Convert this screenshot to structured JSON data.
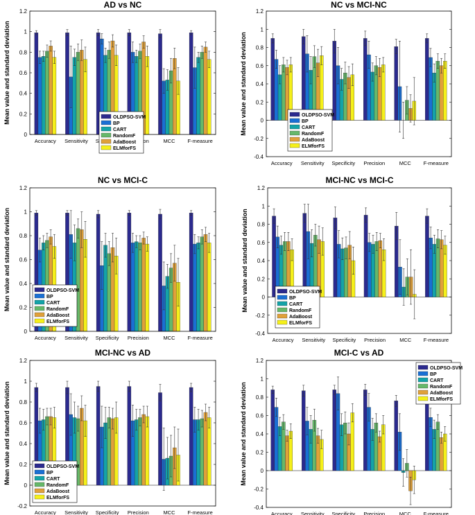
{
  "legend_labels": [
    "OLDPSO-SVM",
    "BP",
    "CART",
    "RandomF",
    "AdaBoost",
    "ELMforFS"
  ],
  "series_colors": [
    "#2b2a8e",
    "#1a6fd4",
    "#14a3a8",
    "#66b86a",
    "#e0a13a",
    "#f5f01a"
  ],
  "chart_data": [
    {
      "type": "bar",
      "title": "AD vs NC",
      "ylabel": "Mean value and standard deviation",
      "xlabel": "",
      "ylim": [
        0,
        1.2
      ],
      "yticks": [
        "0",
        "0.2",
        "0.4",
        "0.6",
        "0.8",
        "1",
        "1.2"
      ],
      "ytick_values": [
        0,
        0.2,
        0.4,
        0.6,
        0.8,
        1,
        1.2
      ],
      "categories": [
        "Accuracy",
        "Sensitivity",
        "Specificity",
        "Precision",
        "MCC",
        "F-measure"
      ],
      "legend_position": "bottom-center",
      "grid": false,
      "series": [
        {
          "name": "OLDPSO-SVM",
          "values": [
            0.99,
            0.99,
            0.99,
            0.99,
            0.98,
            0.99
          ],
          "errors": [
            0.02,
            0.03,
            0.03,
            0.03,
            0.04,
            0.02
          ]
        },
        {
          "name": "BP",
          "values": [
            0.75,
            0.56,
            0.93,
            0.8,
            0.52,
            0.65
          ],
          "errors": [
            0.06,
            0.3,
            0.05,
            0.1,
            0.12,
            0.2
          ]
        },
        {
          "name": "CART",
          "values": [
            0.76,
            0.75,
            0.77,
            0.76,
            0.53,
            0.75
          ],
          "errors": [
            0.05,
            0.08,
            0.07,
            0.06,
            0.1,
            0.05
          ]
        },
        {
          "name": "RandomF",
          "values": [
            0.81,
            0.8,
            0.82,
            0.81,
            0.62,
            0.8
          ],
          "errors": [
            0.06,
            0.08,
            0.08,
            0.07,
            0.12,
            0.06
          ]
        },
        {
          "name": "AdaBoost",
          "values": [
            0.86,
            0.82,
            0.91,
            0.9,
            0.74,
            0.85
          ],
          "errors": [
            0.05,
            0.1,
            0.06,
            0.06,
            0.1,
            0.05
          ]
        },
        {
          "name": "ELMforFS",
          "values": [
            0.75,
            0.73,
            0.77,
            0.76,
            0.52,
            0.73
          ],
          "errors": [
            0.06,
            0.12,
            0.1,
            0.1,
            0.13,
            0.08
          ]
        }
      ]
    },
    {
      "type": "bar",
      "title": "NC vs MCI-NC",
      "ylabel": "Mean value and standard deviation",
      "xlabel": "",
      "ylim": [
        -0.4,
        1.2
      ],
      "yticks": [
        "-0.4",
        "-0.2",
        "0",
        "0.2",
        "0.4",
        "0.6",
        "0.8",
        "1",
        "1.2"
      ],
      "ytick_values": [
        -0.4,
        -0.2,
        0,
        0.2,
        0.4,
        0.6,
        0.8,
        1,
        1.2
      ],
      "categories": [
        "Accuracy",
        "Sensitivity",
        "Specificity",
        "Precision",
        "MCC",
        "F-measure"
      ],
      "legend_position": "bottom-center",
      "grid": false,
      "series": [
        {
          "name": "OLDPSO-SVM",
          "values": [
            0.9,
            0.92,
            0.87,
            0.9,
            0.81,
            0.9
          ],
          "errors": [
            0.05,
            0.08,
            0.13,
            0.08,
            0.08,
            0.05
          ]
        },
        {
          "name": "BP",
          "values": [
            0.67,
            0.73,
            0.6,
            0.72,
            0.37,
            0.69
          ],
          "errors": [
            0.1,
            0.2,
            0.2,
            0.15,
            0.5,
            0.1
          ]
        },
        {
          "name": "CART",
          "values": [
            0.5,
            0.55,
            0.45,
            0.53,
            0.0,
            0.52
          ],
          "errors": [
            0.1,
            0.15,
            0.12,
            0.1,
            0.2,
            0.1
          ]
        },
        {
          "name": "RandomF",
          "values": [
            0.61,
            0.7,
            0.52,
            0.6,
            0.22,
            0.65
          ],
          "errors": [
            0.08,
            0.12,
            0.12,
            0.1,
            0.15,
            0.08
          ]
        },
        {
          "name": "AdaBoost",
          "values": [
            0.58,
            0.63,
            0.47,
            0.58,
            0.13,
            0.6
          ],
          "errors": [
            0.08,
            0.15,
            0.12,
            0.1,
            0.15,
            0.08
          ]
        },
        {
          "name": "ELMforFS",
          "values": [
            0.61,
            0.71,
            0.5,
            0.61,
            0.21,
            0.65
          ],
          "errors": [
            0.08,
            0.1,
            0.12,
            0.08,
            0.26,
            0.08
          ]
        }
      ]
    },
    {
      "type": "bar",
      "title": "NC vs MCI-C",
      "ylabel": "Mean value and standard deviation",
      "xlabel": "",
      "ylim": [
        0,
        1.2
      ],
      "yticks": [
        "0",
        "0.2",
        "0.4",
        "0.6",
        "0.8",
        "1",
        "1.2"
      ],
      "ytick_values": [
        0,
        0.2,
        0.4,
        0.6,
        0.8,
        1,
        1.2
      ],
      "categories": [
        "Accuracy",
        "Sensitivity",
        "Specificity",
        "Precision",
        "MCC",
        "F-measure"
      ],
      "legend_position": "bottom-left",
      "grid": false,
      "series": [
        {
          "name": "OLDPSO-SVM",
          "values": [
            0.99,
            0.99,
            0.98,
            0.99,
            0.98,
            0.99
          ],
          "errors": [
            0.02,
            0.02,
            0.03,
            0.02,
            0.04,
            0.02
          ]
        },
        {
          "name": "BP",
          "values": [
            0.68,
            0.81,
            0.55,
            0.74,
            0.38,
            0.73
          ],
          "errors": [
            0.1,
            0.2,
            0.2,
            0.08,
            0.2,
            0.08
          ]
        },
        {
          "name": "CART",
          "values": [
            0.74,
            0.74,
            0.72,
            0.75,
            0.46,
            0.74
          ],
          "errors": [
            0.06,
            0.15,
            0.1,
            0.05,
            0.1,
            0.05
          ]
        },
        {
          "name": "RandomF",
          "values": [
            0.76,
            0.86,
            0.65,
            0.74,
            0.53,
            0.79
          ],
          "errors": [
            0.06,
            0.08,
            0.1,
            0.06,
            0.12,
            0.06
          ]
        },
        {
          "name": "AdaBoost",
          "values": [
            0.79,
            0.85,
            0.7,
            0.78,
            0.57,
            0.81
          ],
          "errors": [
            0.06,
            0.15,
            0.12,
            0.05,
            0.15,
            0.06
          ]
        },
        {
          "name": "ELMforFS",
          "values": [
            0.71,
            0.77,
            0.63,
            0.73,
            0.41,
            0.74
          ],
          "errors": [
            0.1,
            0.15,
            0.15,
            0.06,
            0.2,
            0.08
          ]
        }
      ]
    },
    {
      "type": "bar",
      "title": "MCI-NC vs MCI-C",
      "ylabel": "Mean value and standard deviation",
      "xlabel": "",
      "ylim": [
        -0.4,
        1.2
      ],
      "yticks": [
        "-0.4",
        "-0.2",
        "0",
        "0.2",
        "0.4",
        "0.6",
        "0.8",
        "1",
        "1.2"
      ],
      "ytick_values": [
        -0.4,
        -0.2,
        0,
        0.2,
        0.4,
        0.6,
        0.8,
        1,
        1.2
      ],
      "categories": [
        "Accuracy",
        "Sensitivity",
        "Specificity",
        "Precision",
        "MCC",
        "F-measure"
      ],
      "legend_position": "bottom-center",
      "grid": false,
      "series": [
        {
          "name": "OLDPSO-SVM",
          "values": [
            0.89,
            0.92,
            0.87,
            0.9,
            0.78,
            0.89
          ],
          "errors": [
            0.08,
            0.1,
            0.12,
            0.08,
            0.15,
            0.08
          ]
        },
        {
          "name": "BP",
          "values": [
            0.66,
            0.72,
            0.58,
            0.6,
            0.33,
            0.65
          ],
          "errors": [
            0.12,
            0.3,
            0.15,
            0.1,
            0.3,
            0.12
          ]
        },
        {
          "name": "CART",
          "values": [
            0.57,
            0.59,
            0.53,
            0.58,
            0.11,
            0.58
          ],
          "errors": [
            0.1,
            0.15,
            0.12,
            0.1,
            0.2,
            0.1
          ]
        },
        {
          "name": "RandomF",
          "values": [
            0.61,
            0.68,
            0.54,
            0.61,
            0.22,
            0.64
          ],
          "errors": [
            0.1,
            0.12,
            0.12,
            0.1,
            0.2,
            0.1
          ]
        },
        {
          "name": "AdaBoost",
          "values": [
            0.61,
            0.63,
            0.57,
            0.62,
            0.22,
            0.63
          ],
          "errors": [
            0.1,
            0.15,
            0.15,
            0.08,
            0.3,
            0.1
          ]
        },
        {
          "name": "ELMforFS",
          "values": [
            0.52,
            0.61,
            0.4,
            0.52,
            0.03,
            0.57
          ],
          "errors": [
            0.12,
            0.15,
            0.15,
            0.12,
            0.27,
            0.1
          ]
        }
      ]
    },
    {
      "type": "bar",
      "title": "MCI-NC vs AD",
      "ylabel": "Mean value and standard deviation",
      "xlabel": "",
      "ylim": [
        -0.2,
        1.2
      ],
      "yticks": [
        "-0.2",
        "0",
        "0.2",
        "0.4",
        "0.6",
        "0.8",
        "1",
        "1.2"
      ],
      "ytick_values": [
        -0.2,
        0,
        0.2,
        0.4,
        0.6,
        0.8,
        1,
        1.2
      ],
      "categories": [
        "Accuracy",
        "Sensitivity",
        "Specificity",
        "Precision",
        "MCC",
        "F-measure"
      ],
      "legend_position": "bottom-left",
      "grid": false,
      "series": [
        {
          "name": "OLDPSO-SVM",
          "values": [
            0.94,
            0.94,
            0.95,
            0.95,
            0.89,
            0.94
          ],
          "errors": [
            0.04,
            0.06,
            0.05,
            0.05,
            0.08,
            0.04
          ]
        },
        {
          "name": "BP",
          "values": [
            0.62,
            0.68,
            0.56,
            0.62,
            0.25,
            0.63
          ],
          "errors": [
            0.12,
            0.2,
            0.2,
            0.15,
            0.3,
            0.12
          ]
        },
        {
          "name": "CART",
          "values": [
            0.63,
            0.65,
            0.6,
            0.63,
            0.26,
            0.63
          ],
          "errors": [
            0.1,
            0.15,
            0.15,
            0.1,
            0.2,
            0.1
          ]
        },
        {
          "name": "RandomF",
          "values": [
            0.66,
            0.64,
            0.65,
            0.65,
            0.28,
            0.64
          ],
          "errors": [
            0.08,
            0.12,
            0.1,
            0.08,
            0.2,
            0.08
          ]
        },
        {
          "name": "AdaBoost",
          "values": [
            0.66,
            0.74,
            0.64,
            0.68,
            0.36,
            0.7
          ],
          "errors": [
            0.08,
            0.12,
            0.1,
            0.08,
            0.2,
            0.08
          ]
        },
        {
          "name": "ELMforFS",
          "values": [
            0.65,
            0.62,
            0.65,
            0.66,
            0.29,
            0.65
          ],
          "errors": [
            0.1,
            0.15,
            0.15,
            0.1,
            0.25,
            0.1
          ]
        }
      ]
    },
    {
      "type": "bar",
      "title": "MCI-C vs AD",
      "ylabel": "Mean value and standard deviation",
      "xlabel": "",
      "ylim": [
        -0.4,
        1.2
      ],
      "yticks": [
        "-0.4",
        "-0.2",
        "0",
        "0.2",
        "0.4",
        "0.6",
        "0.8",
        "1",
        "1.2"
      ],
      "ytick_values": [
        -0.4,
        -0.2,
        0,
        0.2,
        0.4,
        0.6,
        0.8,
        1,
        1.2
      ],
      "categories": [
        "Accuracy",
        "Sensitivity",
        "Specificity",
        "Precision",
        "MCC",
        "F-measure"
      ],
      "legend_position": "top-right",
      "grid": false,
      "series": [
        {
          "name": "OLDPSO-SVM",
          "values": [
            0.88,
            0.87,
            0.88,
            0.88,
            0.76,
            0.87
          ],
          "errors": [
            0.04,
            0.06,
            0.05,
            0.06,
            0.06,
            0.05
          ]
        },
        {
          "name": "BP",
          "values": [
            0.69,
            0.54,
            0.84,
            0.69,
            0.42,
            0.58
          ],
          "errors": [
            0.1,
            0.15,
            0.18,
            0.15,
            0.2,
            0.1
          ]
        },
        {
          "name": "CART",
          "values": [
            0.48,
            0.45,
            0.5,
            0.45,
            -0.02,
            0.45
          ],
          "errors": [
            0.1,
            0.15,
            0.12,
            0.12,
            0.15,
            0.1
          ]
        },
        {
          "name": "RandomF",
          "values": [
            0.53,
            0.55,
            0.52,
            0.52,
            0.08,
            0.53
          ],
          "errors": [
            0.08,
            0.12,
            0.12,
            0.1,
            0.15,
            0.08
          ]
        },
        {
          "name": "AdaBoost",
          "values": [
            0.38,
            0.38,
            0.4,
            0.37,
            -0.22,
            0.36
          ],
          "errors": [
            0.06,
            0.08,
            0.12,
            0.06,
            0.15,
            0.06
          ]
        },
        {
          "name": "ELMforFS",
          "values": [
            0.43,
            0.34,
            0.63,
            0.5,
            -0.1,
            0.4
          ],
          "errors": [
            0.08,
            0.1,
            0.1,
            0.1,
            0.15,
            0.08
          ]
        }
      ]
    }
  ]
}
